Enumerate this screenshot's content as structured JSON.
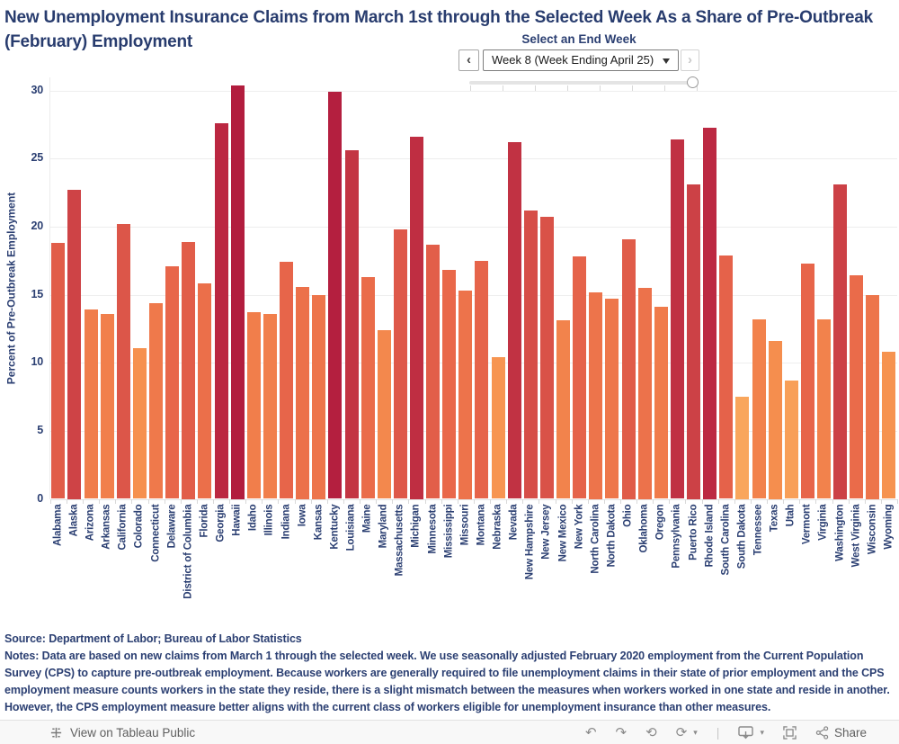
{
  "header": {
    "filter": {
      "label": "Select an End Week",
      "selected_week": "Week 8 (Week Ending April 25)",
      "prev_icon": "‹",
      "next_icon": "›",
      "slider_tick_count": 8
    }
  },
  "chart_data": {
    "type": "bar",
    "title": "New Unemployment Insurance Claims from March 1st through the Selected Week As a Share of Pre-Outbreak (February) Employment",
    "ylabel": "Percent of Pre-Outbreak Employment",
    "xlabel": "",
    "ylim": [
      0,
      30
    ],
    "yticks": [
      0,
      5,
      10,
      15,
      20,
      25,
      30
    ],
    "grid": true,
    "legend": "none",
    "categories": [
      "Alabama",
      "Alaska",
      "Arizona",
      "Arkansas",
      "California",
      "Colorado",
      "Connecticut",
      "Delaware",
      "District of Columbia",
      "Florida",
      "Georgia",
      "Hawaii",
      "Idaho",
      "Illinois",
      "Indiana",
      "Iowa",
      "Kansas",
      "Kentucky",
      "Louisiana",
      "Maine",
      "Maryland",
      "Massachusetts",
      "Michigan",
      "Minnesota",
      "Mississippi",
      "Missouri",
      "Montana",
      "Nebraska",
      "Nevada",
      "New Hampshire",
      "New Jersey",
      "New Mexico",
      "New York",
      "North Carolina",
      "North Dakota",
      "Ohio",
      "Oklahoma",
      "Oregon",
      "Pennsylvania",
      "Puerto Rico",
      "Rhode Island",
      "South Carolina",
      "South Dakota",
      "Tennessee",
      "Texas",
      "Utah",
      "Vermont",
      "Virginia",
      "Washington",
      "West Virginia",
      "Wisconsin",
      "Wyoming"
    ],
    "values": [
      18.8,
      22.7,
      13.9,
      13.6,
      20.2,
      11.1,
      14.4,
      17.1,
      18.9,
      15.8,
      27.6,
      30.4,
      13.7,
      13.6,
      17.4,
      15.6,
      15.0,
      29.9,
      25.6,
      16.3,
      12.4,
      19.8,
      26.6,
      18.7,
      16.8,
      15.3,
      17.5,
      10.4,
      26.2,
      21.2,
      20.7,
      13.1,
      17.8,
      15.2,
      14.7,
      19.1,
      15.5,
      14.1,
      26.4,
      23.1,
      27.3,
      17.9,
      7.5,
      13.2,
      11.6,
      8.7,
      17.3,
      13.2,
      23.1,
      16.4,
      15.0,
      10.8
    ],
    "color_ramp_stops": [
      [
        7.5,
        "#f9a65c"
      ],
      [
        11,
        "#f6924f"
      ],
      [
        14,
        "#f07c4b"
      ],
      [
        17,
        "#e8674a"
      ],
      [
        20,
        "#dd5749"
      ],
      [
        23,
        "#cc4146"
      ],
      [
        26,
        "#c23343"
      ],
      [
        28,
        "#b92441"
      ],
      [
        30.5,
        "#b21d3e"
      ]
    ],
    "text_color": "#2b3f72",
    "gridline_color": "#eeeeee"
  },
  "footer": {
    "source": "Source: Department of Labor; Bureau of Labor Statistics",
    "notes": "Notes: Data are based on new claims from March 1 through the selected week. We use seasonally adjusted February 2020 employment from the Current Population Survey (CPS) to capture pre-outbreak employment. Because workers are generally required to file unemployment claims in their state of prior employment and the CPS employment measure counts workers in the state they reside, there is a slight mismatch between the measures when workers worked in one state and reside in another. However, the CPS employment measure better aligns with the current class of workers eligible for unemployment insurance than other measures."
  },
  "toolbar": {
    "view_label": "View on Tableau Public",
    "share_label": "Share",
    "undo_icon": "↶",
    "redo_icon": "↷",
    "revert_icon": "⟲",
    "refresh_icon": "⟳",
    "caret_icon": "▾",
    "separator": "|"
  }
}
